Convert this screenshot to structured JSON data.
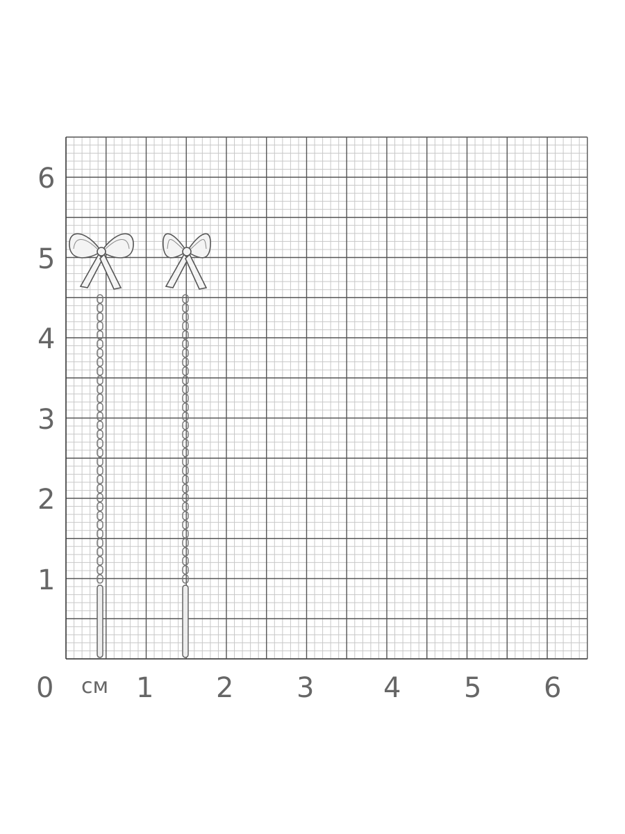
{
  "scale": {
    "unit_label": "см",
    "x_ticks": [
      "0",
      "1",
      "2",
      "3",
      "4",
      "5",
      "6"
    ],
    "y_ticks": [
      "1",
      "2",
      "3",
      "4",
      "5",
      "6"
    ],
    "max_cm": 6.5,
    "major_step_cm": 0.5,
    "minor_step_cm": 0.1
  },
  "colors": {
    "major_line": "#555555",
    "minor_line": "#c8c8c8",
    "label": "#666666",
    "metal": "#b0b0b0"
  },
  "product": {
    "items": [
      {
        "name": "bow-earring-left",
        "length_cm": 5.2
      },
      {
        "name": "bow-earring-right",
        "length_cm": 5.2
      }
    ]
  }
}
